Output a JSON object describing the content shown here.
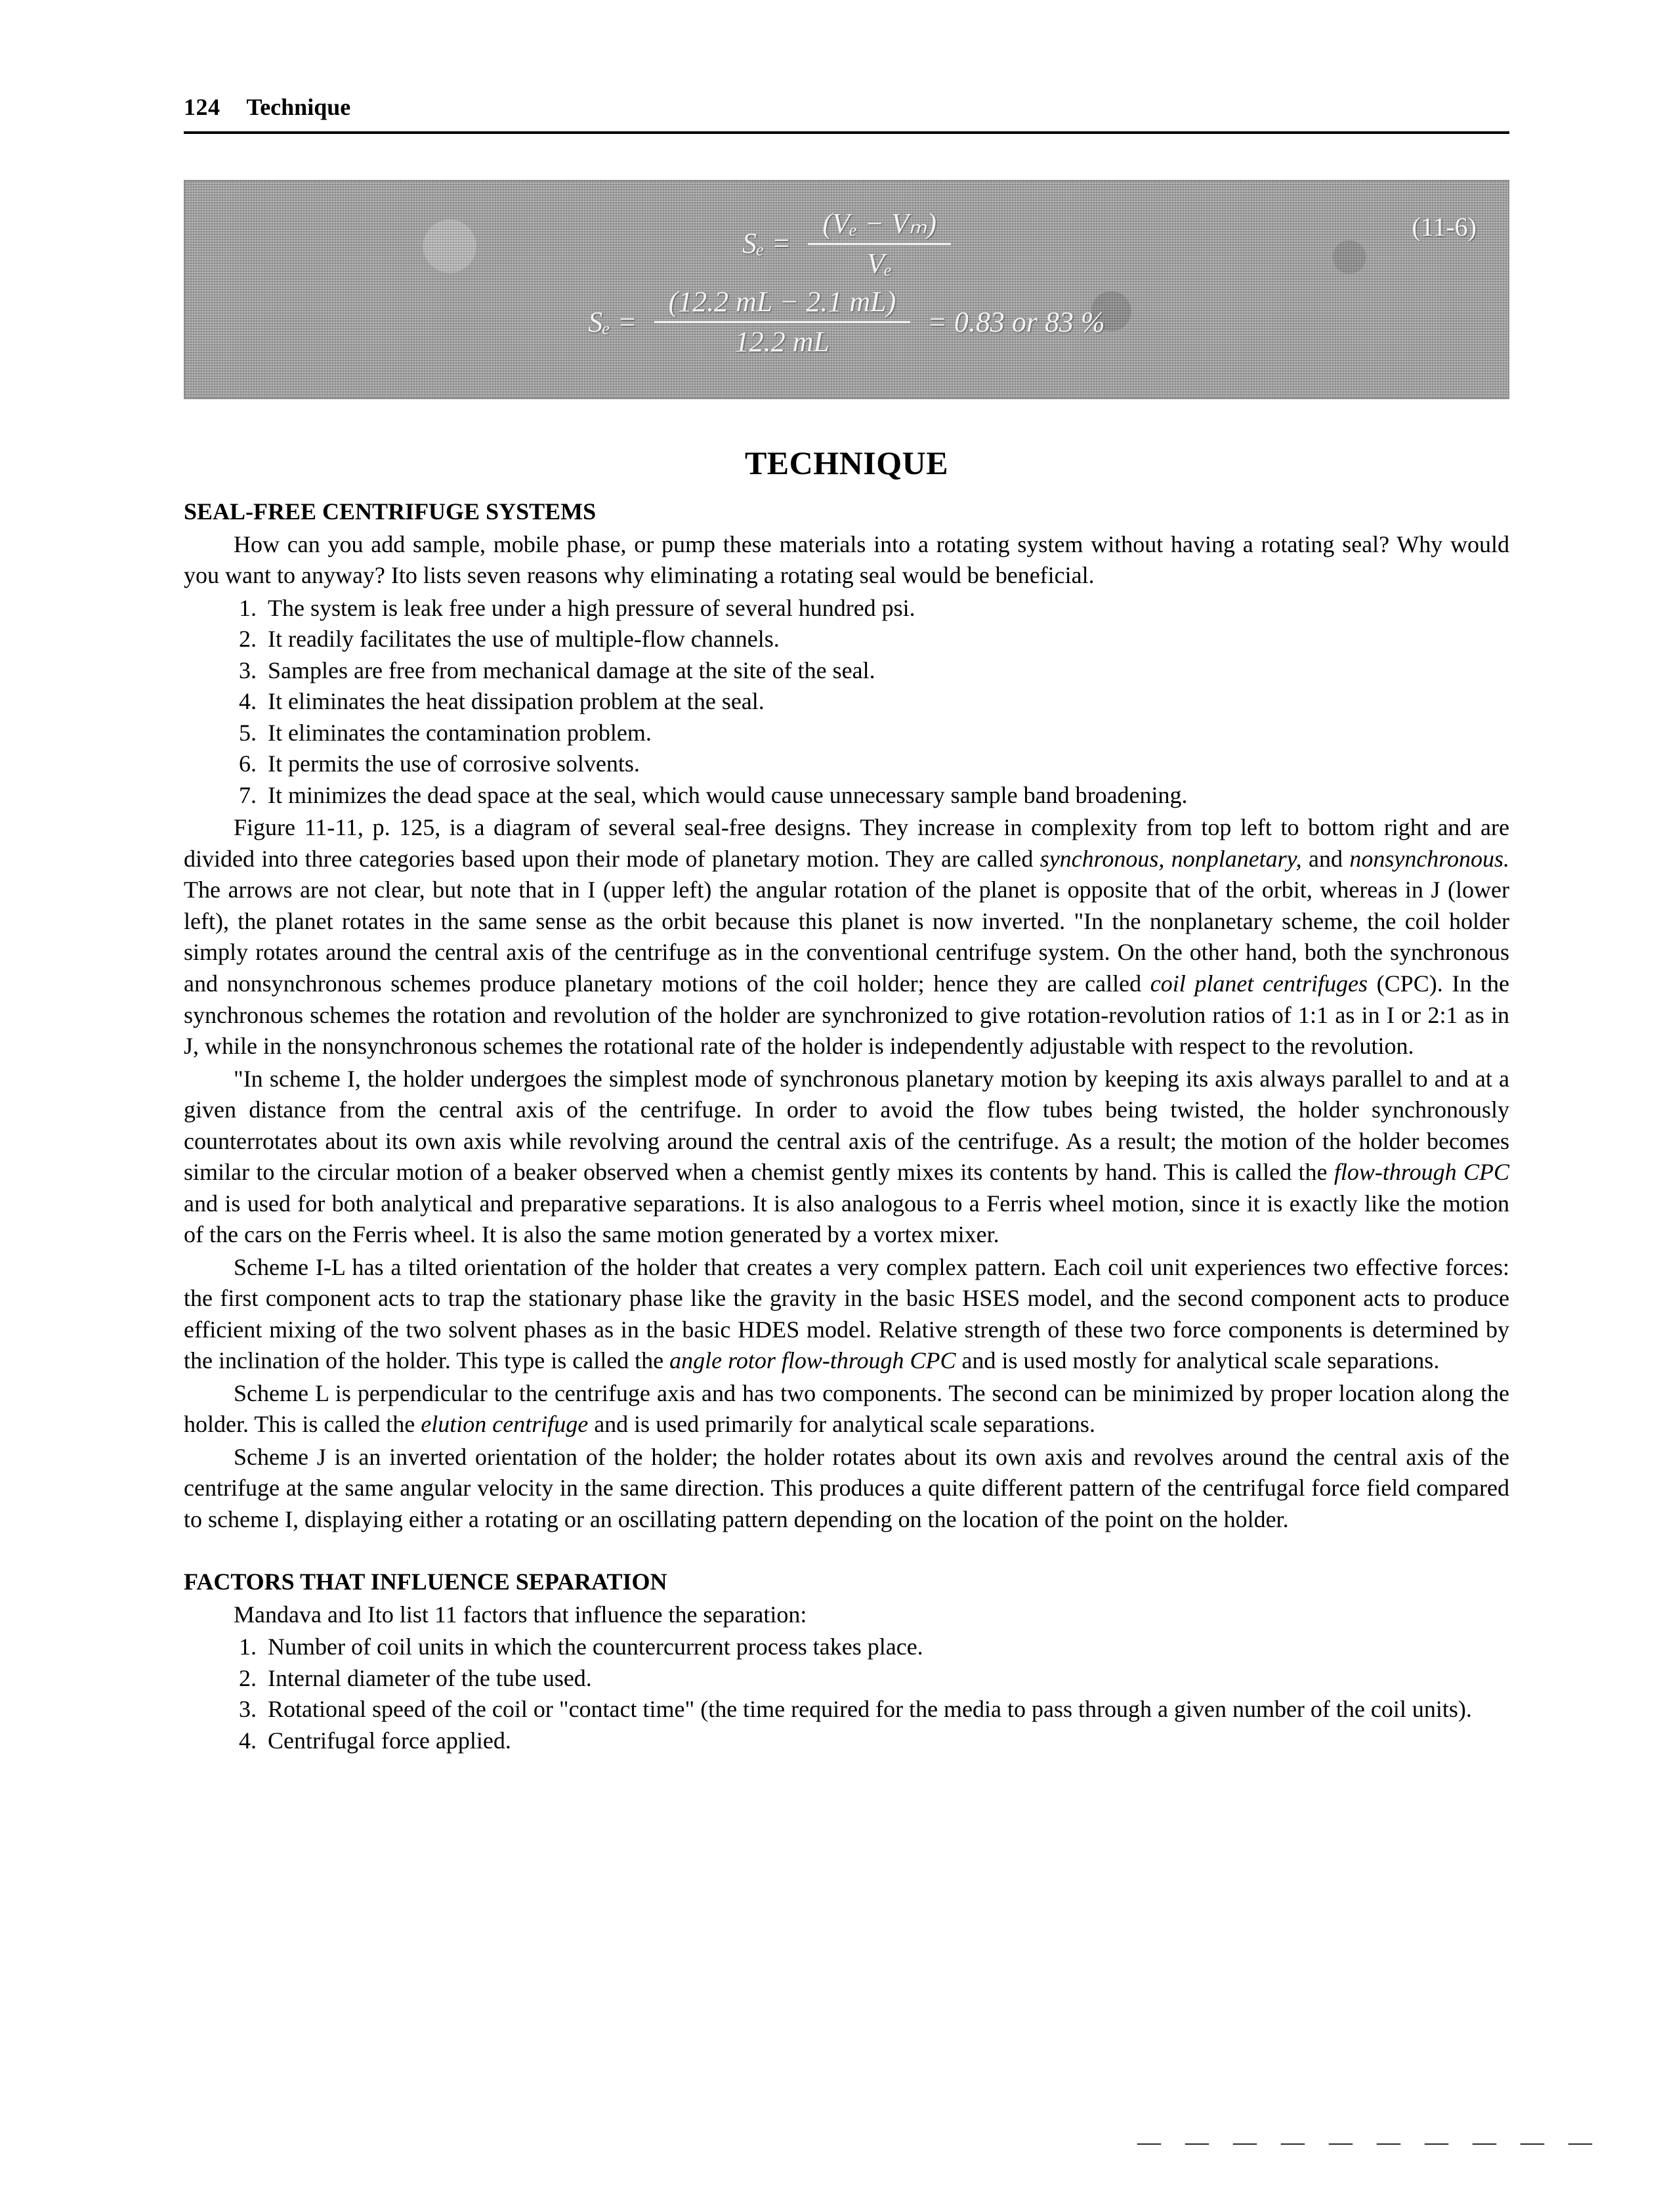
{
  "page_number": "124",
  "running_title": "Technique",
  "equation_block": {
    "background_color": "#a7a7a7",
    "text_color": "#f4f4f4",
    "eq_number": "(11-6)",
    "line1": {
      "lhs": "Sₑ =",
      "num": "(Vₑ  −  Vₘ)",
      "den": "Vₑ"
    },
    "line2": {
      "lhs": "Sₑ =",
      "num": "(12.2  mL  −  2.1  mL)",
      "den": "12.2  mL",
      "rhs": "= 0.83 or 83 %"
    }
  },
  "center_title": "TECHNIQUE",
  "seal_free": {
    "heading": "SEAL-FREE CENTRIFUGE SYSTEMS",
    "intro": "How can you add sample, mobile phase, or pump these materials into a rotating system without having a rotating seal? Why would you want to anyway? Ito lists seven reasons why eliminating a rotating seal would be beneficial.",
    "reasons": [
      "The system is leak free under a high pressure of several hundred psi.",
      "It readily facilitates the use of multiple-flow channels.",
      "Samples are free from mechanical damage at the site of the seal.",
      "It eliminates the heat dissipation problem at the seal.",
      "It eliminates the contamination problem.",
      "It permits the use of corrosive solvents.",
      "It minimizes the dead space at the seal, which would cause unnecessary sample band broadening."
    ],
    "para1_a": "Figure 11-11, p. 125, is a diagram of several seal-free designs. They increase in complexity from top left to bottom right and are divided into three categories based upon their mode of planetary motion. They are called ",
    "para1_syn": "synchronous,",
    "para1_b": " ",
    "para1_nonp": "nonplanetary,",
    "para1_c": " and ",
    "para1_nons": "nonsynchronous.",
    "para1_d": " The arrows are not clear, but note that in I (upper left) the angular rotation of the planet is opposite that of the orbit, whereas in J (lower left), the planet rotates in the same sense as the orbit because this planet is now inverted. \"In the nonplanetary scheme, the coil holder simply rotates around the central axis of the centrifuge as in the conventional centrifuge system. On the other hand, both the synchronous and nonsynchronous schemes produce planetary motions of the coil holder; hence they are called ",
    "para1_cpc": "coil planet centrifuges",
    "para1_e": " (CPC). In the synchronous schemes the rotation and revolution of the holder are synchronized to give rotation-revolution ratios of 1:1 as in I or 2:1 as in J, while in the nonsynchronous schemes the rotational rate of the holder is independently adjustable with respect to the revolution.",
    "para2_a": "\"In scheme I, the holder undergoes the simplest mode of synchronous planetary motion by keeping its axis always parallel to and at a given distance from the central axis of the centrifuge. In order to avoid the flow tubes being twisted, the holder synchronously counterrotates about its own axis while revolving around the central axis of the centrifuge. As a result; the motion of the holder becomes similar to the circular motion of a beaker observed when a chemist gently mixes its contents by hand. This is called the ",
    "para2_ft": "flow-through CPC",
    "para2_b": " and is used for both analytical and preparative separations. It is also analogous to a Ferris wheel motion, since it is exactly like the motion of the cars on the Ferris wheel. It is also the same motion generated by a vortex mixer.",
    "para3_a": "Scheme I-L has a tilted orientation of the holder that creates a very complex pattern. Each coil unit experiences two effective forces: the first component acts to trap the stationary phase like the gravity in the basic HSES model, and the second component acts to produce efficient mixing of the two solvent phases as in the basic HDES model. Relative strength of these two force components is determined by the inclination of the holder. This type is called the ",
    "para3_ar": "angle rotor flow-through CPC",
    "para3_b": " and is used mostly for analytical scale separations.",
    "para4_a": "Scheme L is perpendicular to the centrifuge axis and has two components. The second can be minimized by proper location along the holder. This is called the ",
    "para4_ec": "elution centrifuge",
    "para4_b": " and is used primarily for analytical scale separations.",
    "para5": "Scheme J is an inverted orientation of the holder; the holder rotates about its own axis and revolves around the central axis of the centrifuge at the same angular velocity in the same direction. This produces a quite different pattern of the centrifugal force field compared to scheme I, displaying either a rotating or an oscillating pattern depending on the location of the point on the holder."
  },
  "factors": {
    "heading": "FACTORS THAT INFLUENCE SEPARATION",
    "intro": "Mandava and Ito list 11 factors that influence the separation:",
    "items": [
      "Number of coil units in which the countercurrent process takes place.",
      "Internal diameter of the tube used.",
      "Rotational speed of the coil or \"contact time\" (the time required for the media to pass through a given number of the coil units).",
      "Centrifugal force applied."
    ]
  },
  "footer_dashes": "— — — — — — — — — —"
}
